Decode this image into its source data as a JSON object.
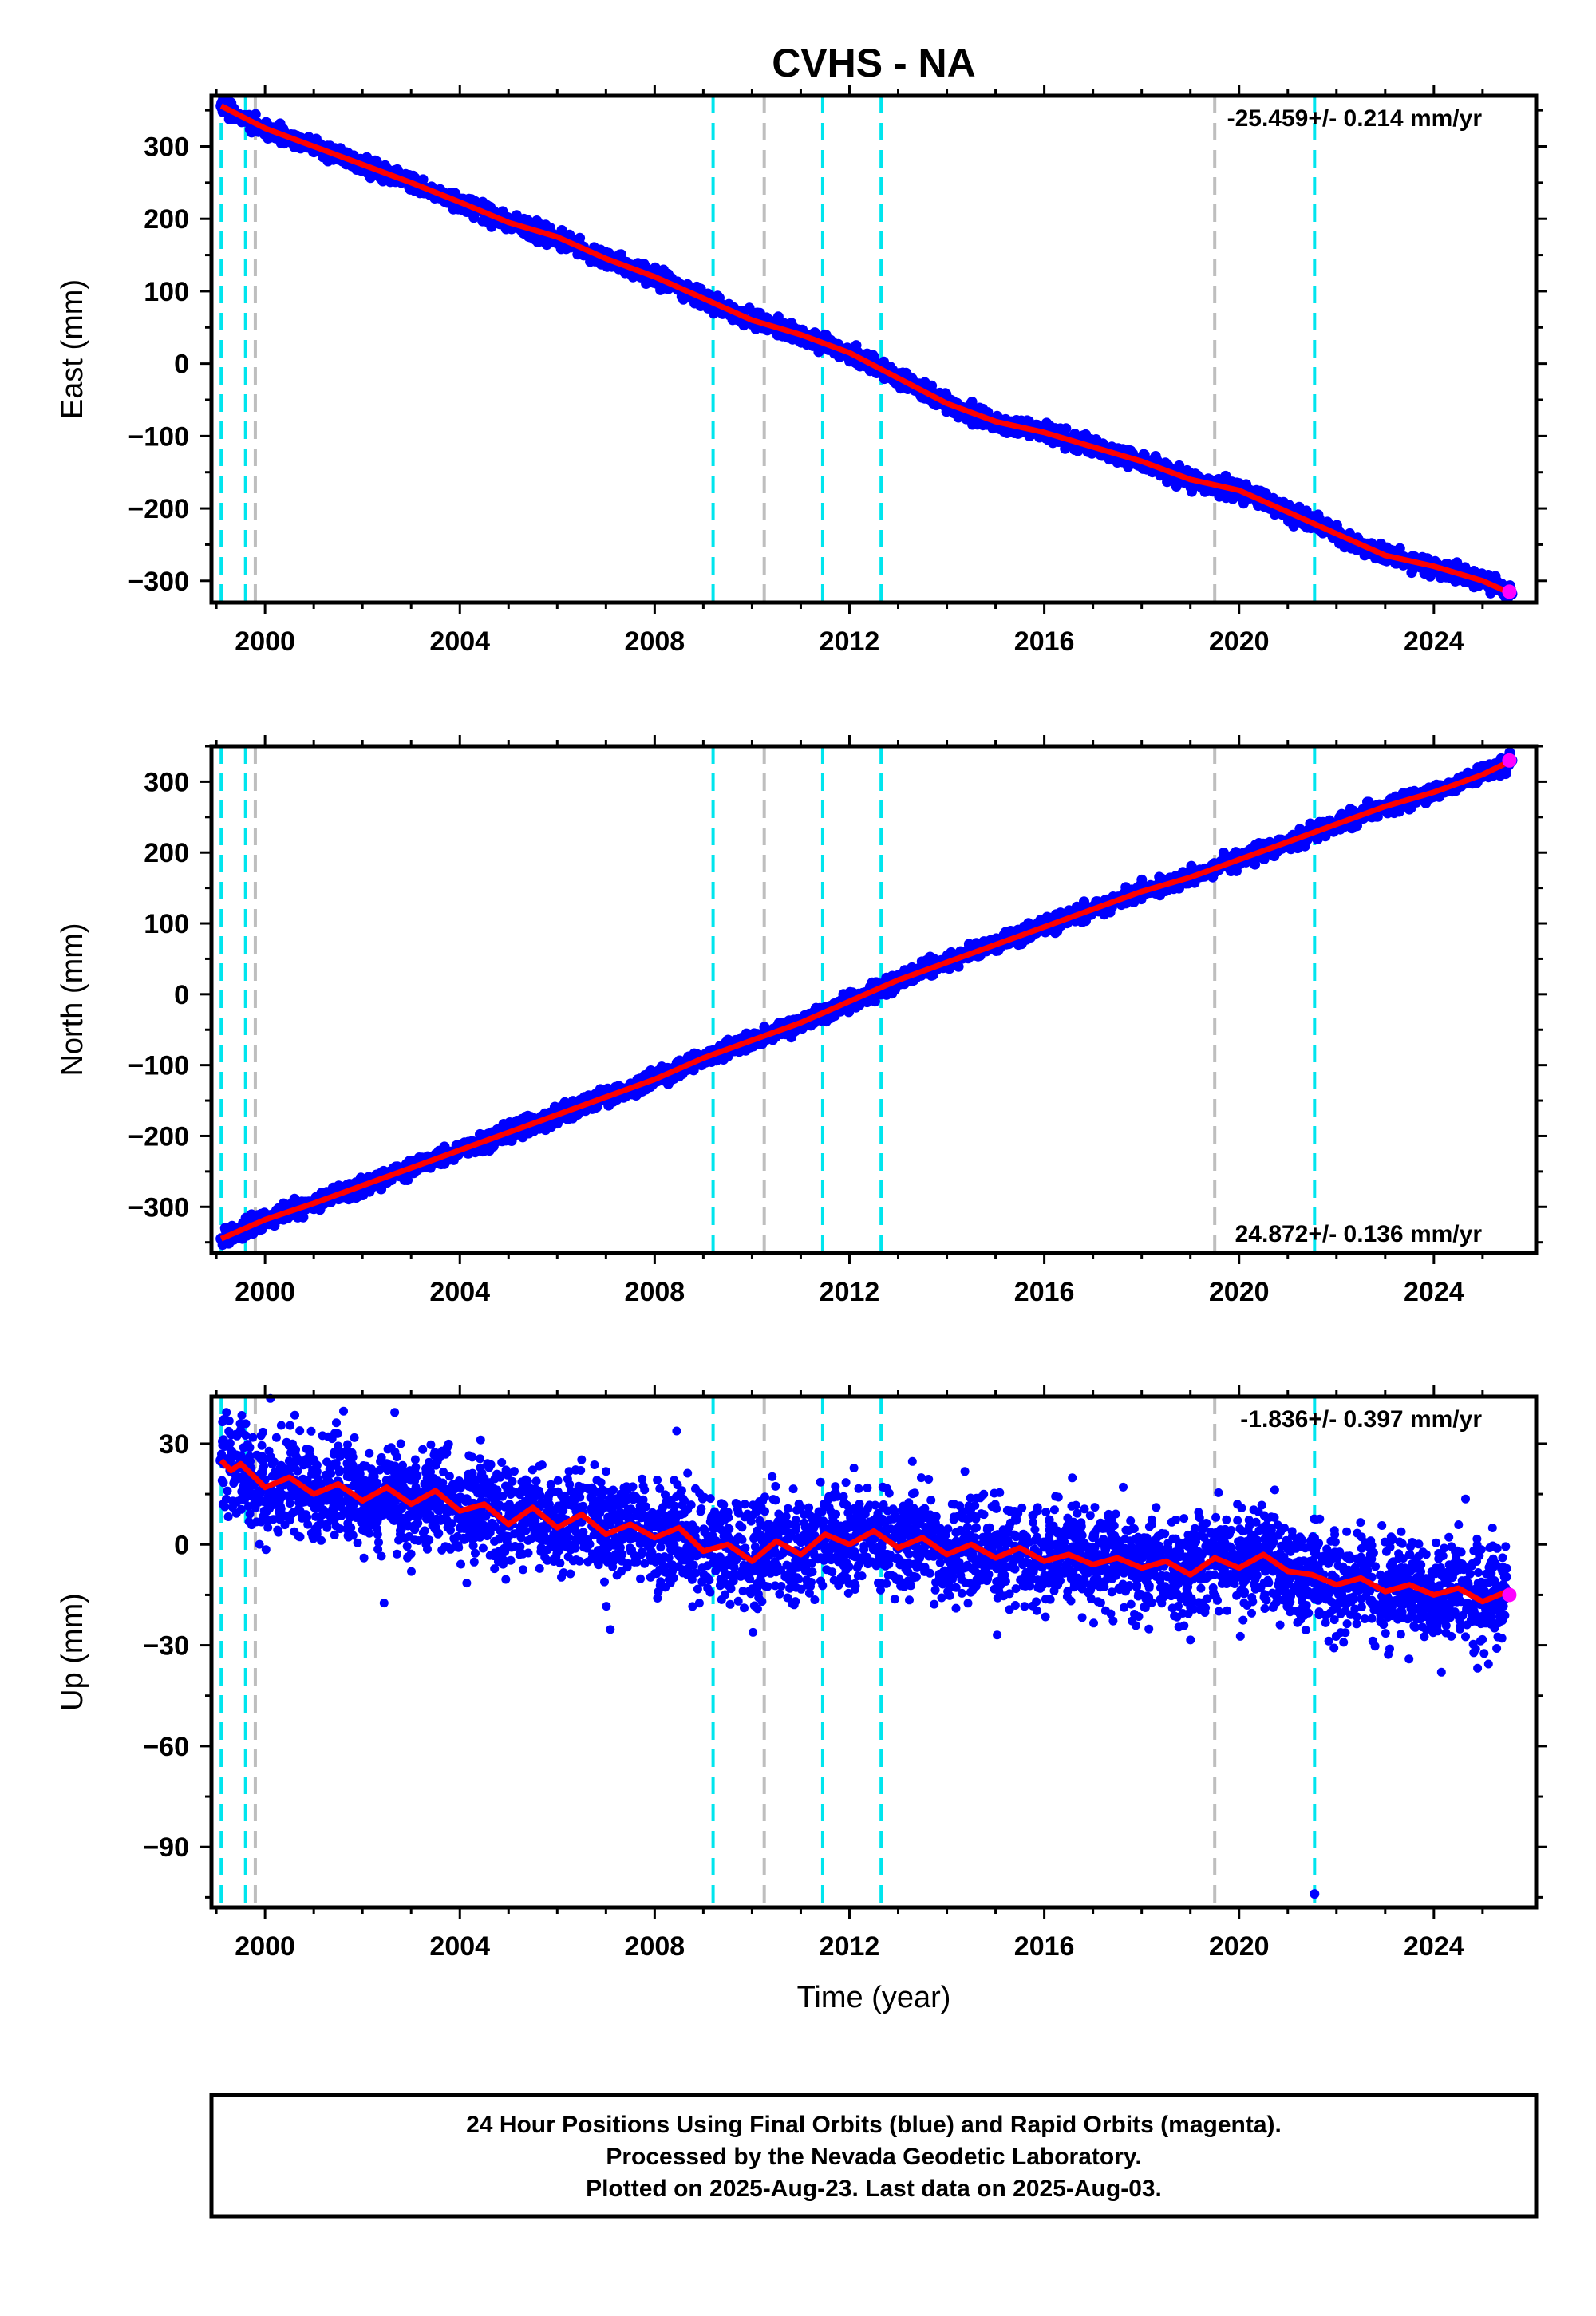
{
  "title": "CVHS - NA",
  "xlabel": "Time (year)",
  "colors": {
    "final_orbits": "#0000ff",
    "rapid_orbits": "#ff00ff",
    "model": "#ff0000",
    "event_cyan": "#00e5ee",
    "event_gray": "#bebebe"
  },
  "events": {
    "cyan": [
      1999.1,
      1999.6,
      2009.2,
      2011.45,
      2012.65,
      2021.55
    ],
    "gray": [
      1999.8,
      2010.25,
      2019.5
    ]
  },
  "footer": {
    "line1": "24 Hour Positions Using Final Orbits (blue) and Rapid Orbits (magenta).",
    "line2": "Processed by the Nevada Geodetic Laboratory.",
    "line3": "Plotted on 2025-Aug-23. Last data on 2025-Aug-03."
  },
  "chart_data": [
    {
      "type": "scatter",
      "name": "east",
      "ylabel": "East (mm)",
      "rate_text": "-25.459+/- 0.214 mm/yr",
      "rate_position": "top-right",
      "xlim": [
        1998.9,
        2026.1
      ],
      "ylim": [
        -330,
        370
      ],
      "x_ticks": [
        2000,
        2004,
        2008,
        2012,
        2016,
        2020,
        2024
      ],
      "y_ticks": [
        -300,
        -200,
        -100,
        0,
        100,
        200,
        300
      ],
      "series": [
        {
          "role": "positions",
          "x": [
            1999.1,
            2000.0,
            2001.0,
            2002.0,
            2003.0,
            2004.0,
            2005.0,
            2006.0,
            2007.0,
            2008.0,
            2009.0,
            2010.0,
            2011.0,
            2012.0,
            2013.0,
            2014.0,
            2015.0,
            2016.0,
            2017.0,
            2018.0,
            2019.0,
            2020.0,
            2021.0,
            2022.0,
            2023.0,
            2024.0,
            2025.0,
            2025.6
          ],
          "values": [
            356,
            325,
            300,
            275,
            250,
            223,
            195,
            175,
            145,
            120,
            90,
            60,
            40,
            15,
            -20,
            -55,
            -80,
            -95,
            -115,
            -135,
            -160,
            -175,
            -205,
            -235,
            -265,
            -280,
            -300,
            -318
          ]
        },
        {
          "role": "model",
          "x": [
            1999.1,
            2000.0,
            2001.0,
            2002.0,
            2003.0,
            2004.0,
            2005.0,
            2006.0,
            2007.0,
            2008.0,
            2009.0,
            2010.0,
            2011.0,
            2012.0,
            2013.0,
            2014.0,
            2015.0,
            2016.0,
            2017.0,
            2018.0,
            2019.0,
            2020.0,
            2021.0,
            2022.0,
            2023.0,
            2024.0,
            2025.0,
            2025.6
          ],
          "values": [
            356,
            325,
            300,
            275,
            250,
            223,
            195,
            175,
            145,
            120,
            90,
            60,
            40,
            15,
            -20,
            -55,
            -80,
            -95,
            -115,
            -135,
            -160,
            -175,
            -205,
            -235,
            -265,
            -280,
            -300,
            -318
          ]
        },
        {
          "role": "rapid",
          "x": [
            2025.55
          ],
          "values": [
            -315
          ]
        }
      ]
    },
    {
      "type": "scatter",
      "name": "north",
      "ylabel": "North (mm)",
      "rate_text": "24.872+/- 0.136 mm/yr",
      "rate_position": "bottom-right",
      "xlim": [
        1998.9,
        2026.1
      ],
      "ylim": [
        -365,
        350
      ],
      "x_ticks": [
        2000,
        2004,
        2008,
        2012,
        2016,
        2020,
        2024
      ],
      "y_ticks": [
        -300,
        -200,
        -100,
        0,
        100,
        200,
        300
      ],
      "series": [
        {
          "role": "positions",
          "x": [
            1999.1,
            2000.0,
            2001.0,
            2002.0,
            2003.0,
            2004.0,
            2005.0,
            2006.0,
            2007.0,
            2008.0,
            2009.0,
            2010.0,
            2011.0,
            2012.0,
            2013.0,
            2014.0,
            2015.0,
            2016.0,
            2017.0,
            2018.0,
            2019.0,
            2020.0,
            2021.0,
            2022.0,
            2023.0,
            2024.0,
            2025.0,
            2025.6
          ],
          "values": [
            -345,
            -318,
            -295,
            -270,
            -245,
            -220,
            -195,
            -170,
            -145,
            -120,
            -90,
            -65,
            -40,
            -10,
            20,
            45,
            70,
            95,
            120,
            145,
            165,
            190,
            215,
            240,
            265,
            285,
            310,
            330
          ]
        },
        {
          "role": "model",
          "x": [
            1999.1,
            2000.0,
            2001.0,
            2002.0,
            2003.0,
            2004.0,
            2005.0,
            2006.0,
            2007.0,
            2008.0,
            2009.0,
            2010.0,
            2011.0,
            2012.0,
            2013.0,
            2014.0,
            2015.0,
            2016.0,
            2017.0,
            2018.0,
            2019.0,
            2020.0,
            2021.0,
            2022.0,
            2023.0,
            2024.0,
            2025.0,
            2025.6
          ],
          "values": [
            -345,
            -318,
            -295,
            -270,
            -245,
            -220,
            -195,
            -170,
            -145,
            -120,
            -90,
            -65,
            -40,
            -10,
            20,
            45,
            70,
            95,
            120,
            145,
            165,
            190,
            215,
            240,
            265,
            285,
            310,
            330
          ]
        },
        {
          "role": "rapid",
          "x": [
            2025.55
          ],
          "values": [
            330
          ]
        }
      ]
    },
    {
      "type": "scatter",
      "name": "up",
      "ylabel": "Up (mm)",
      "xlabel": "Time (year)",
      "rate_text": "-1.836+/- 0.397 mm/yr",
      "rate_position": "top-right",
      "xlim": [
        1998.9,
        2026.1
      ],
      "ylim": [
        -108,
        44
      ],
      "x_ticks": [
        2000,
        2004,
        2008,
        2012,
        2016,
        2020,
        2024
      ],
      "y_ticks": [
        -90,
        -60,
        -30,
        0,
        30
      ],
      "series": [
        {
          "role": "positions",
          "x": [
            1999.1,
            1999.3,
            1999.5,
            2000.0,
            2000.5,
            2001.0,
            2001.5,
            2002.0,
            2002.5,
            2003.0,
            2003.5,
            2004.0,
            2004.5,
            2005.0,
            2005.5,
            2006.0,
            2006.5,
            2007.0,
            2007.5,
            2008.0,
            2008.5,
            2009.0,
            2009.5,
            2010.0,
            2010.5,
            2011.0,
            2011.5,
            2012.0,
            2012.5,
            2013.0,
            2013.5,
            2014.0,
            2014.5,
            2015.0,
            2015.5,
            2016.0,
            2016.5,
            2017.0,
            2017.5,
            2018.0,
            2018.5,
            2019.0,
            2019.5,
            2020.0,
            2020.5,
            2021.0,
            2021.5,
            2022.0,
            2022.5,
            2023.0,
            2023.5,
            2024.0,
            2024.5,
            2025.0,
            2025.5
          ],
          "values": [
            25,
            22,
            24,
            17,
            20,
            15,
            18,
            13,
            17,
            12,
            16,
            10,
            12,
            6,
            11,
            5,
            9,
            3,
            6,
            2,
            5,
            -2,
            0,
            -5,
            1,
            -3,
            3,
            0,
            4,
            -1,
            2,
            -3,
            0,
            -4,
            -1,
            -5,
            -3,
            -6,
            -4,
            -7,
            -5,
            -9,
            -4,
            -7,
            -3,
            -8,
            -9,
            -12,
            -10,
            -14,
            -12,
            -15,
            -13,
            -17,
            -14
          ]
        },
        {
          "role": "model",
          "x": [
            1999.1,
            1999.3,
            1999.5,
            2000.0,
            2000.5,
            2001.0,
            2001.5,
            2002.0,
            2002.5,
            2003.0,
            2003.5,
            2004.0,
            2004.5,
            2005.0,
            2005.5,
            2006.0,
            2006.5,
            2007.0,
            2007.5,
            2008.0,
            2008.5,
            2009.0,
            2009.5,
            2010.0,
            2010.5,
            2011.0,
            2011.5,
            2012.0,
            2012.5,
            2013.0,
            2013.5,
            2014.0,
            2014.5,
            2015.0,
            2015.5,
            2016.0,
            2016.5,
            2017.0,
            2017.5,
            2018.0,
            2018.5,
            2019.0,
            2019.5,
            2020.0,
            2020.5,
            2021.0,
            2021.5,
            2022.0,
            2022.5,
            2023.0,
            2023.5,
            2024.0,
            2024.5,
            2025.0,
            2025.5
          ],
          "values": [
            25,
            22,
            24,
            17,
            20,
            15,
            18,
            13,
            17,
            12,
            16,
            10,
            12,
            6,
            11,
            5,
            9,
            3,
            6,
            2,
            5,
            -2,
            0,
            -5,
            1,
            -3,
            3,
            0,
            4,
            -1,
            2,
            -3,
            0,
            -4,
            -1,
            -5,
            -3,
            -6,
            -4,
            -7,
            -5,
            -9,
            -4,
            -7,
            -3,
            -8,
            -9,
            -12,
            -10,
            -14,
            -12,
            -15,
            -13,
            -17,
            -14
          ]
        },
        {
          "role": "rapid",
          "x": [
            2025.55
          ],
          "values": [
            -15
          ]
        },
        {
          "role": "outlier",
          "x": [
            2021.55
          ],
          "values": [
            -104
          ]
        }
      ]
    }
  ]
}
